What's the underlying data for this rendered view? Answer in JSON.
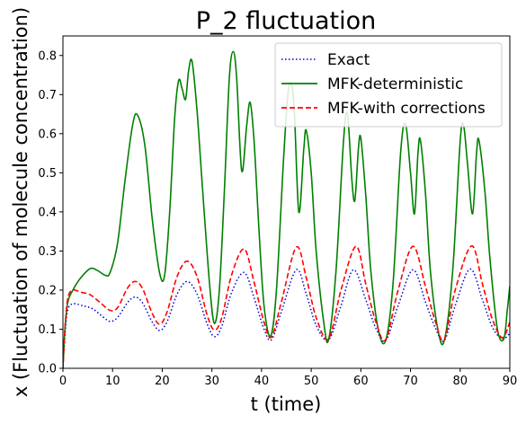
{
  "chart_data": {
    "type": "line",
    "title": "P_2 fluctuation",
    "xlabel": "t (time)",
    "ylabel": "x (Fluctuation of molecule concentration)",
    "xlim": [
      0,
      90
    ],
    "ylim": [
      0,
      0.85
    ],
    "xticks": [
      0,
      10,
      20,
      30,
      40,
      50,
      60,
      70,
      80,
      90
    ],
    "yticks": [
      0.0,
      0.1,
      0.2,
      0.3,
      0.4,
      0.5,
      0.6,
      0.7,
      0.8
    ],
    "grid": false,
    "legend_position": "top-right",
    "series": [
      {
        "name": "Exact",
        "color": "#0000cc",
        "style": "dotted",
        "points": [
          [
            0,
            0
          ],
          [
            0.5,
            0.1
          ],
          [
            1,
            0.15
          ],
          [
            2,
            0.165
          ],
          [
            4,
            0.16
          ],
          [
            6,
            0.152
          ],
          [
            8,
            0.132
          ],
          [
            9.5,
            0.12
          ],
          [
            11,
            0.13
          ],
          [
            13,
            0.168
          ],
          [
            14.5,
            0.182
          ],
          [
            16,
            0.168
          ],
          [
            18,
            0.118
          ],
          [
            19.5,
            0.097
          ],
          [
            21,
            0.12
          ],
          [
            23,
            0.19
          ],
          [
            25,
            0.222
          ],
          [
            27,
            0.19
          ],
          [
            29,
            0.115
          ],
          [
            30.5,
            0.081
          ],
          [
            32,
            0.108
          ],
          [
            34,
            0.195
          ],
          [
            36.5,
            0.245
          ],
          [
            38.5,
            0.18
          ],
          [
            40.5,
            0.1
          ],
          [
            42,
            0.073
          ],
          [
            44,
            0.145
          ],
          [
            47,
            0.252
          ],
          [
            49,
            0.19
          ],
          [
            51,
            0.11
          ],
          [
            53.5,
            0.073
          ],
          [
            56,
            0.16
          ],
          [
            58.5,
            0.252
          ],
          [
            61,
            0.175
          ],
          [
            63,
            0.103
          ],
          [
            65,
            0.071
          ],
          [
            67.5,
            0.16
          ],
          [
            70.5,
            0.252
          ],
          [
            73,
            0.17
          ],
          [
            75,
            0.103
          ],
          [
            76.8,
            0.071
          ],
          [
            79,
            0.16
          ],
          [
            82,
            0.254
          ],
          [
            84.5,
            0.175
          ],
          [
            86.5,
            0.105
          ],
          [
            88.5,
            0.075
          ],
          [
            90,
            0.09
          ]
        ]
      },
      {
        "name": "MFK-deterministic",
        "color": "#008000",
        "style": "solid",
        "points": [
          [
            0,
            0
          ],
          [
            0.4,
            0.1
          ],
          [
            1,
            0.17
          ],
          [
            2,
            0.2
          ],
          [
            3.5,
            0.23
          ],
          [
            5.5,
            0.255
          ],
          [
            7,
            0.25
          ],
          [
            8.5,
            0.238
          ],
          [
            9.5,
            0.245
          ],
          [
            11,
            0.32
          ],
          [
            12.5,
            0.48
          ],
          [
            14,
            0.62
          ],
          [
            15,
            0.648
          ],
          [
            16.5,
            0.57
          ],
          [
            18,
            0.38
          ],
          [
            19.5,
            0.242
          ],
          [
            20.5,
            0.24
          ],
          [
            21.5,
            0.4
          ],
          [
            22.5,
            0.64
          ],
          [
            23.3,
            0.736
          ],
          [
            24,
            0.715
          ],
          [
            24.7,
            0.688
          ],
          [
            25.3,
            0.76
          ],
          [
            26,
            0.785
          ],
          [
            27,
            0.66
          ],
          [
            28,
            0.48
          ],
          [
            29.5,
            0.22
          ],
          [
            30.5,
            0.115
          ],
          [
            31.5,
            0.2
          ],
          [
            32.5,
            0.45
          ],
          [
            33.5,
            0.74
          ],
          [
            34.3,
            0.81
          ],
          [
            35,
            0.74
          ],
          [
            36,
            0.505
          ],
          [
            37,
            0.62
          ],
          [
            37.7,
            0.68
          ],
          [
            38.5,
            0.58
          ],
          [
            39.5,
            0.35
          ],
          [
            40.5,
            0.16
          ],
          [
            41.8,
            0.082
          ],
          [
            43,
            0.2
          ],
          [
            44.5,
            0.55
          ],
          [
            45.5,
            0.72
          ],
          [
            46.5,
            0.68
          ],
          [
            47.5,
            0.4
          ],
          [
            48.5,
            0.56
          ],
          [
            49,
            0.608
          ],
          [
            50,
            0.5
          ],
          [
            51,
            0.3
          ],
          [
            52.5,
            0.12
          ],
          [
            53.5,
            0.073
          ],
          [
            55,
            0.25
          ],
          [
            56.5,
            0.58
          ],
          [
            57.3,
            0.65
          ],
          [
            58.2,
            0.48
          ],
          [
            58.8,
            0.43
          ],
          [
            59.5,
            0.56
          ],
          [
            60,
            0.588
          ],
          [
            61,
            0.44
          ],
          [
            62,
            0.25
          ],
          [
            63.5,
            0.1
          ],
          [
            65,
            0.071
          ],
          [
            66.5,
            0.22
          ],
          [
            68,
            0.55
          ],
          [
            69,
            0.625
          ],
          [
            70,
            0.5
          ],
          [
            70.8,
            0.395
          ],
          [
            71.5,
            0.55
          ],
          [
            72,
            0.583
          ],
          [
            73,
            0.45
          ],
          [
            74,
            0.25
          ],
          [
            75.5,
            0.1
          ],
          [
            76.8,
            0.071
          ],
          [
            78.5,
            0.25
          ],
          [
            80,
            0.58
          ],
          [
            80.7,
            0.62
          ],
          [
            81.5,
            0.52
          ],
          [
            82.5,
            0.395
          ],
          [
            83.3,
            0.55
          ],
          [
            83.8,
            0.582
          ],
          [
            85,
            0.45
          ],
          [
            86,
            0.28
          ],
          [
            87.5,
            0.1
          ],
          [
            88.8,
            0.075
          ],
          [
            89.5,
            0.15
          ],
          [
            90,
            0.21
          ]
        ]
      },
      {
        "name": "MFK-with corrections",
        "color": "#ff0000",
        "style": "dashed",
        "points": [
          [
            0,
            0
          ],
          [
            0.4,
            0.1
          ],
          [
            1,
            0.18
          ],
          [
            2,
            0.2
          ],
          [
            3.5,
            0.195
          ],
          [
            5.5,
            0.188
          ],
          [
            7.5,
            0.168
          ],
          [
            9.5,
            0.148
          ],
          [
            11,
            0.155
          ],
          [
            13,
            0.205
          ],
          [
            14.5,
            0.222
          ],
          [
            16,
            0.205
          ],
          [
            18,
            0.14
          ],
          [
            19.5,
            0.113
          ],
          [
            21,
            0.145
          ],
          [
            23,
            0.235
          ],
          [
            25,
            0.274
          ],
          [
            27,
            0.235
          ],
          [
            29,
            0.138
          ],
          [
            30.5,
            0.098
          ],
          [
            32,
            0.13
          ],
          [
            34,
            0.24
          ],
          [
            36.5,
            0.305
          ],
          [
            38.5,
            0.22
          ],
          [
            40.5,
            0.118
          ],
          [
            42,
            0.08
          ],
          [
            44,
            0.17
          ],
          [
            47,
            0.31
          ],
          [
            49,
            0.232
          ],
          [
            51,
            0.13
          ],
          [
            53.5,
            0.075
          ],
          [
            56,
            0.2
          ],
          [
            59,
            0.312
          ],
          [
            61,
            0.215
          ],
          [
            63,
            0.12
          ],
          [
            65,
            0.073
          ],
          [
            67.5,
            0.2
          ],
          [
            70.5,
            0.312
          ],
          [
            73,
            0.21
          ],
          [
            75,
            0.12
          ],
          [
            76.8,
            0.073
          ],
          [
            79,
            0.2
          ],
          [
            82.3,
            0.313
          ],
          [
            84.5,
            0.215
          ],
          [
            86.5,
            0.125
          ],
          [
            88.5,
            0.078
          ],
          [
            90,
            0.118
          ]
        ]
      }
    ]
  }
}
